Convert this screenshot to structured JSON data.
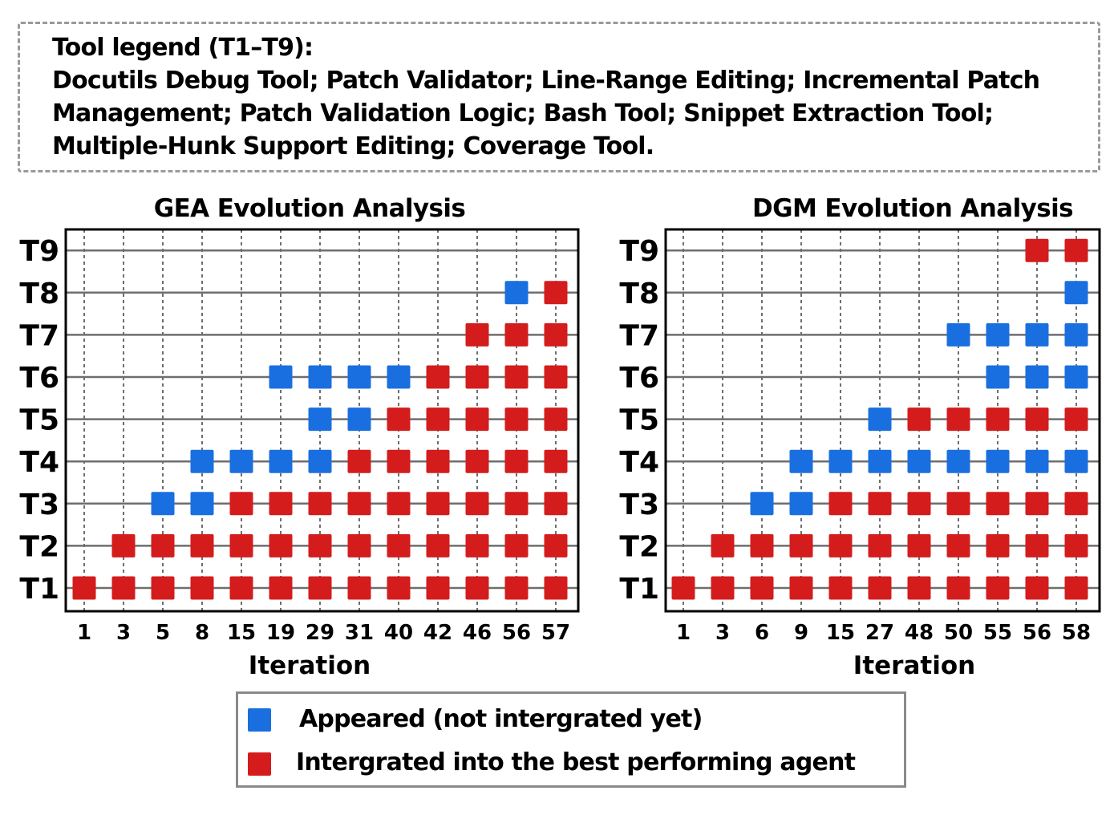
{
  "tool_legend": {
    "title": "Tool legend (T1–T9):",
    "lines": [
      "Docutils Debug Tool; Patch Validator; Line-Range Editing; Incremental Patch",
      "Management; Patch Validation Logic; Bash Tool; Snippet Extraction Tool;",
      "Multiple-Hunk Support Editing; Coverage Tool."
    ]
  },
  "colors": {
    "appeared": "#1a6fe0",
    "integrated": "#d41c1c",
    "grid": "#6e6e6e"
  },
  "chart_data": [
    {
      "type": "scatter",
      "title": "GEA Evolution Analysis",
      "xlabel": "Iteration",
      "categories": [
        "1",
        "3",
        "5",
        "8",
        "15",
        "19",
        "29",
        "31",
        "40",
        "42",
        "46",
        "56",
        "57"
      ],
      "rows": [
        "T1",
        "T2",
        "T3",
        "T4",
        "T5",
        "T6",
        "T7",
        "T8",
        "T9"
      ],
      "series": [
        {
          "name": "Appeared (not intergrated yet)",
          "points": [
            [
              "5",
              "T3"
            ],
            [
              "8",
              "T3"
            ],
            [
              "8",
              "T4"
            ],
            [
              "15",
              "T4"
            ],
            [
              "19",
              "T4"
            ],
            [
              "29",
              "T4"
            ],
            [
              "29",
              "T5"
            ],
            [
              "31",
              "T5"
            ],
            [
              "19",
              "T6"
            ],
            [
              "29",
              "T6"
            ],
            [
              "31",
              "T6"
            ],
            [
              "40",
              "T6"
            ],
            [
              "56",
              "T8"
            ]
          ]
        },
        {
          "name": "Intergrated into the best performing agent",
          "points": [
            [
              "1",
              "T1"
            ],
            [
              "3",
              "T1"
            ],
            [
              "5",
              "T1"
            ],
            [
              "8",
              "T1"
            ],
            [
              "15",
              "T1"
            ],
            [
              "19",
              "T1"
            ],
            [
              "29",
              "T1"
            ],
            [
              "31",
              "T1"
            ],
            [
              "40",
              "T1"
            ],
            [
              "42",
              "T1"
            ],
            [
              "46",
              "T1"
            ],
            [
              "56",
              "T1"
            ],
            [
              "57",
              "T1"
            ],
            [
              "3",
              "T2"
            ],
            [
              "5",
              "T2"
            ],
            [
              "8",
              "T2"
            ],
            [
              "15",
              "T2"
            ],
            [
              "19",
              "T2"
            ],
            [
              "29",
              "T2"
            ],
            [
              "31",
              "T2"
            ],
            [
              "40",
              "T2"
            ],
            [
              "42",
              "T2"
            ],
            [
              "46",
              "T2"
            ],
            [
              "56",
              "T2"
            ],
            [
              "57",
              "T2"
            ],
            [
              "15",
              "T3"
            ],
            [
              "19",
              "T3"
            ],
            [
              "29",
              "T3"
            ],
            [
              "31",
              "T3"
            ],
            [
              "40",
              "T3"
            ],
            [
              "42",
              "T3"
            ],
            [
              "46",
              "T3"
            ],
            [
              "56",
              "T3"
            ],
            [
              "57",
              "T3"
            ],
            [
              "31",
              "T4"
            ],
            [
              "40",
              "T4"
            ],
            [
              "42",
              "T4"
            ],
            [
              "46",
              "T4"
            ],
            [
              "56",
              "T4"
            ],
            [
              "57",
              "T4"
            ],
            [
              "40",
              "T5"
            ],
            [
              "42",
              "T5"
            ],
            [
              "46",
              "T5"
            ],
            [
              "56",
              "T5"
            ],
            [
              "57",
              "T5"
            ],
            [
              "42",
              "T6"
            ],
            [
              "46",
              "T6"
            ],
            [
              "56",
              "T6"
            ],
            [
              "57",
              "T6"
            ],
            [
              "46",
              "T7"
            ],
            [
              "56",
              "T7"
            ],
            [
              "57",
              "T7"
            ],
            [
              "57",
              "T8"
            ]
          ]
        }
      ]
    },
    {
      "type": "scatter",
      "title": "DGM Evolution Analysis",
      "xlabel": "Iteration",
      "categories": [
        "1",
        "3",
        "6",
        "9",
        "15",
        "27",
        "48",
        "50",
        "55",
        "56",
        "58"
      ],
      "rows": [
        "T1",
        "T2",
        "T3",
        "T4",
        "T5",
        "T6",
        "T7",
        "T8",
        "T9"
      ],
      "series": [
        {
          "name": "Appeared (not intergrated yet)",
          "points": [
            [
              "6",
              "T3"
            ],
            [
              "9",
              "T3"
            ],
            [
              "9",
              "T4"
            ],
            [
              "15",
              "T4"
            ],
            [
              "27",
              "T4"
            ],
            [
              "48",
              "T4"
            ],
            [
              "50",
              "T4"
            ],
            [
              "55",
              "T4"
            ],
            [
              "56",
              "T4"
            ],
            [
              "58",
              "T4"
            ],
            [
              "27",
              "T5"
            ],
            [
              "55",
              "T6"
            ],
            [
              "56",
              "T6"
            ],
            [
              "58",
              "T6"
            ],
            [
              "50",
              "T7"
            ],
            [
              "55",
              "T7"
            ],
            [
              "56",
              "T7"
            ],
            [
              "58",
              "T7"
            ],
            [
              "58",
              "T8"
            ]
          ]
        },
        {
          "name": "Intergrated into the best performing agent",
          "points": [
            [
              "1",
              "T1"
            ],
            [
              "3",
              "T1"
            ],
            [
              "6",
              "T1"
            ],
            [
              "9",
              "T1"
            ],
            [
              "15",
              "T1"
            ],
            [
              "27",
              "T1"
            ],
            [
              "48",
              "T1"
            ],
            [
              "50",
              "T1"
            ],
            [
              "55",
              "T1"
            ],
            [
              "56",
              "T1"
            ],
            [
              "58",
              "T1"
            ],
            [
              "3",
              "T2"
            ],
            [
              "6",
              "T2"
            ],
            [
              "9",
              "T2"
            ],
            [
              "15",
              "T2"
            ],
            [
              "27",
              "T2"
            ],
            [
              "48",
              "T2"
            ],
            [
              "50",
              "T2"
            ],
            [
              "55",
              "T2"
            ],
            [
              "56",
              "T2"
            ],
            [
              "58",
              "T2"
            ],
            [
              "15",
              "T3"
            ],
            [
              "27",
              "T3"
            ],
            [
              "48",
              "T3"
            ],
            [
              "50",
              "T3"
            ],
            [
              "55",
              "T3"
            ],
            [
              "56",
              "T3"
            ],
            [
              "58",
              "T3"
            ],
            [
              "48",
              "T5"
            ],
            [
              "50",
              "T5"
            ],
            [
              "55",
              "T5"
            ],
            [
              "56",
              "T5"
            ],
            [
              "58",
              "T5"
            ],
            [
              "56",
              "T9"
            ],
            [
              "58",
              "T9"
            ]
          ]
        }
      ]
    }
  ],
  "marker_legend": {
    "appeared_label": "Appeared (not intergrated yet)",
    "integrated_label": "Intergrated into the best performing agent"
  }
}
